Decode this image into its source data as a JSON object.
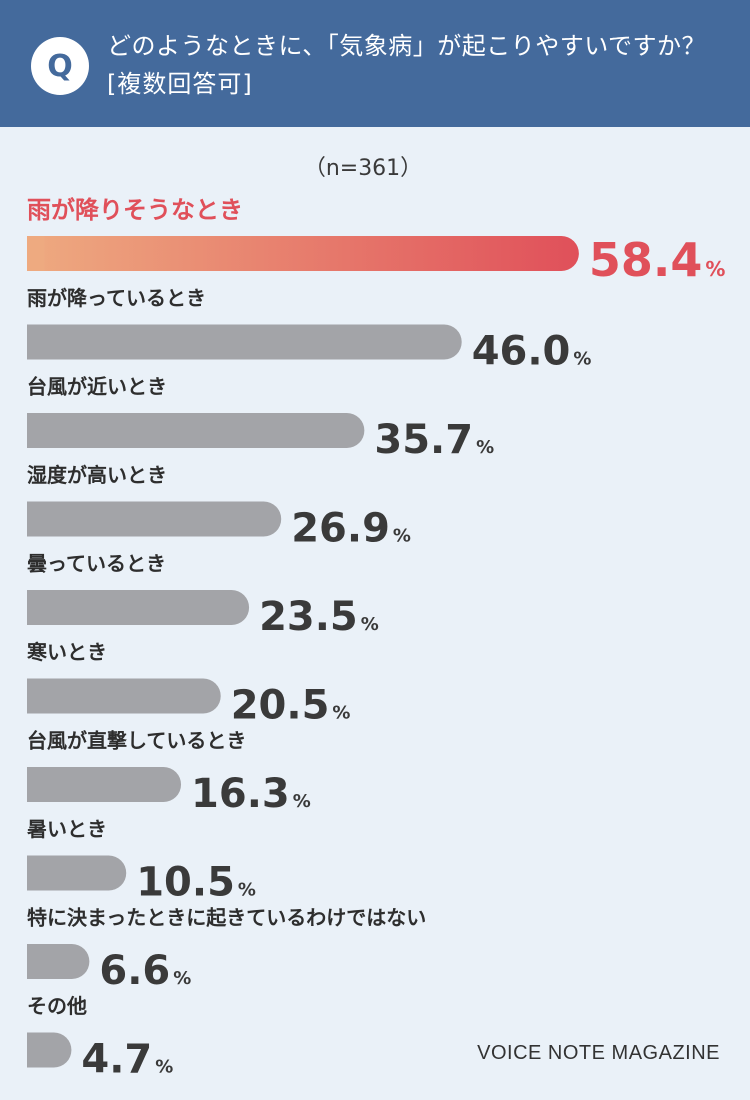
{
  "header": {
    "badge": "Q",
    "question": "どのようなときに、「気象病」が起こりやすいですか？",
    "note": "[複数回答可]"
  },
  "sample_size": "（n=361）",
  "credit": "VOICE NOTE MAGAZINE",
  "colors": {
    "header_bg": "#446a9c",
    "page_bg": "#eaf1f8",
    "bar_gray": "#a3a4a8",
    "highlight_start": "#eeaa80",
    "highlight_end": "#e0505a",
    "highlight_text": "#e0505a",
    "value_text": "#3a3a3a"
  },
  "chart_data": {
    "type": "bar",
    "orientation": "horizontal",
    "unit": "%",
    "categories": [
      "雨が降りそうなとき",
      "雨が降っているとき",
      "台風が近いとき",
      "湿度が高いとき",
      "曇っているとき",
      "寒いとき",
      "台風が直撃しているとき",
      "暑いとき",
      "特に決まったときに起きているわけではない",
      "その他"
    ],
    "values": [
      58.4,
      46.0,
      35.7,
      26.9,
      23.5,
      20.5,
      16.3,
      10.5,
      6.6,
      4.7
    ],
    "value_labels": [
      "58.4",
      "46.0",
      "35.7",
      "26.9",
      "23.5",
      "20.5",
      "16.3",
      "10.5",
      "6.6",
      "4.7"
    ],
    "highlight_index": 0
  }
}
